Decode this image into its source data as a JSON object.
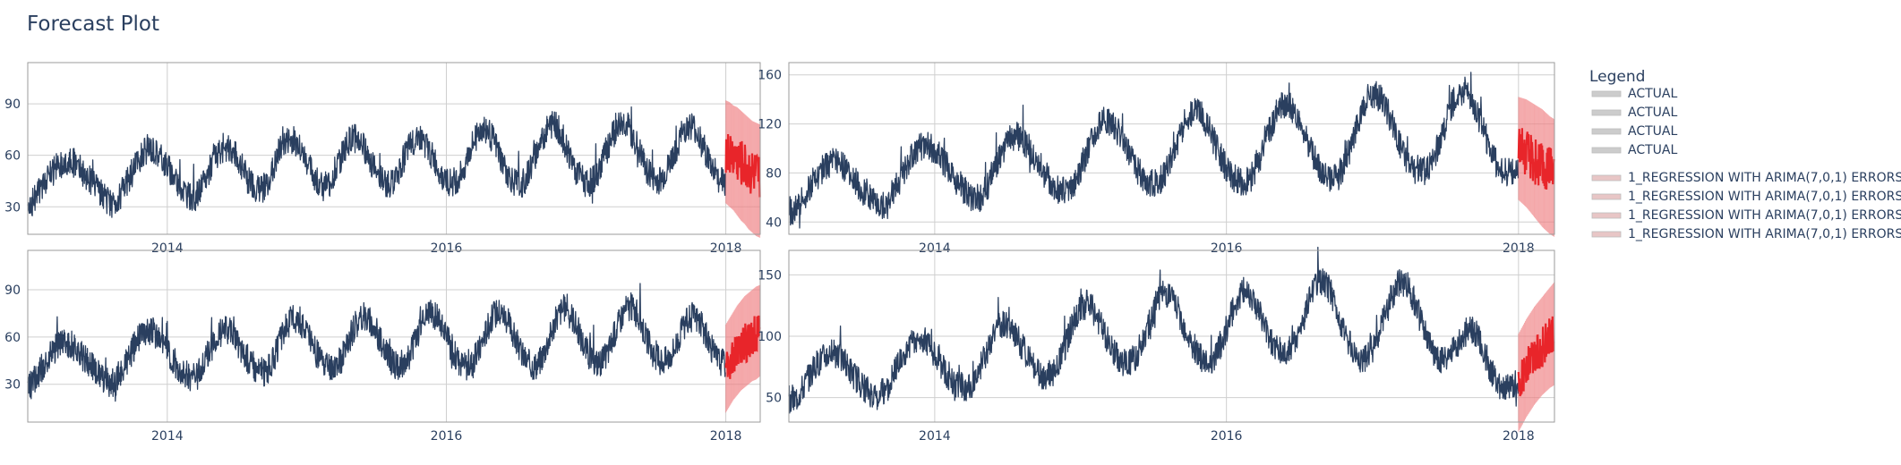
{
  "title": "Forecast Plot",
  "legend": {
    "title": "Legend",
    "items": [
      {
        "label": "ACTUAL",
        "color": "#cccccc"
      },
      {
        "label": "ACTUAL",
        "color": "#cccccc"
      },
      {
        "label": "ACTUAL",
        "color": "#cccccc"
      },
      {
        "label": "ACTUAL",
        "color": "#cccccc"
      },
      {
        "label": "1_REGRESSION WITH ARIMA(7,0,1) ERRORS",
        "color": "#e8c6c6"
      },
      {
        "label": "1_REGRESSION WITH ARIMA(7,0,1) ERRORS",
        "color": "#e8c6c6"
      },
      {
        "label": "1_REGRESSION WITH ARIMA(7,0,1) ERRORS",
        "color": "#e8c6c6"
      },
      {
        "label": "1_REGRESSION WITH ARIMA(7,0,1) ERRORS",
        "color": "#e8c6c6"
      }
    ]
  },
  "colors": {
    "actual": "#2a3f5f",
    "forecast": "#e8252a",
    "forecast_band": "#f2b8b8",
    "grid": "#cfcfcf",
    "axis": "#9b9b9b"
  },
  "chart_data": [
    {
      "type": "line",
      "xlim": [
        "2013-01-01",
        "2018-04-01"
      ],
      "xticks": [
        "2014",
        "2016",
        "2018"
      ],
      "ylim": [
        14,
        114
      ],
      "yticks": [
        30,
        60,
        90
      ],
      "actual": {
        "name": "ACTUAL",
        "start": "2013-01-01",
        "end": "2017-12-31",
        "weekly_points": [
          33,
          31,
          34,
          36,
          38,
          41,
          43,
          45,
          48,
          50,
          52,
          54,
          55,
          56,
          57,
          57,
          56,
          55,
          54,
          52,
          50,
          48,
          46,
          44,
          42,
          40,
          38,
          36,
          34,
          33,
          32,
          33,
          34,
          36,
          39,
          42,
          45,
          48,
          52,
          55,
          58,
          60,
          62,
          64,
          64,
          63,
          62,
          60,
          58,
          56,
          54,
          52,
          49,
          46,
          44,
          42,
          40,
          38,
          36,
          35,
          35,
          37,
          39,
          42,
          46,
          50,
          54,
          57,
          60,
          62,
          64,
          65,
          64,
          63,
          61,
          59,
          56,
          53,
          50,
          47,
          45,
          43,
          41,
          40,
          40,
          42,
          44,
          47,
          51,
          55,
          59,
          63,
          66,
          68,
          69,
          69,
          68,
          66,
          63,
          60,
          57,
          54,
          51,
          48,
          46,
          44,
          42,
          42,
          43,
          45,
          48,
          52,
          56,
          60,
          64,
          67,
          69,
          70,
          70,
          69,
          67,
          64,
          61,
          58,
          55,
          52,
          49,
          47,
          45,
          44,
          43,
          44,
          46,
          49,
          53,
          57,
          61,
          64,
          67,
          69,
          70,
          70,
          69,
          67,
          64,
          61,
          58,
          55,
          52,
          49,
          47,
          45,
          44,
          44,
          45,
          47,
          50,
          54,
          58,
          62,
          66,
          70,
          73,
          75,
          76,
          75,
          73,
          70,
          67,
          63,
          59,
          55,
          51,
          48,
          46,
          44,
          43,
          43,
          44,
          46,
          49,
          53,
          57,
          61,
          65,
          69,
          72,
          75,
          77,
          78,
          77,
          75,
          72,
          68,
          64,
          60,
          56,
          52,
          49,
          47,
          45,
          44,
          44,
          45,
          47,
          50,
          54,
          58,
          62,
          66,
          70,
          73,
          76,
          78,
          79,
          78,
          76,
          73,
          70,
          66,
          62,
          58,
          54,
          51,
          48,
          46,
          45,
          45,
          46,
          48,
          51,
          55,
          59,
          63,
          67,
          71,
          74,
          76,
          77,
          77,
          75,
          72,
          69,
          65,
          61,
          57,
          53,
          50,
          48,
          46,
          45,
          45
        ]
      },
      "forecast": {
        "name": "1_REGRESSION WITH ARIMA(7,0,1) ERRORS",
        "start": "2018-01-01",
        "end": "2018-03-31",
        "mean": [
          62,
          61,
          60,
          58,
          56,
          54,
          52,
          50,
          48,
          47
        ],
        "upper": [
          92,
          91,
          89,
          88,
          86,
          84,
          82,
          80,
          79,
          78
        ],
        "lower": [
          32,
          30,
          28,
          25,
          22,
          20,
          17,
          15,
          13,
          12
        ]
      }
    },
    {
      "type": "line",
      "xlim": [
        "2013-01-01",
        "2018-04-01"
      ],
      "xticks": [
        "2014",
        "2016",
        "2018"
      ],
      "ylim": [
        30,
        170
      ],
      "yticks": [
        40,
        80,
        120,
        160
      ],
      "actual": {
        "name": "ACTUAL",
        "start": "2013-01-01",
        "end": "2017-12-31",
        "weekly_points": [
          50,
          48,
          50,
          53,
          57,
          61,
          65,
          69,
          73,
          77,
          80,
          83,
          86,
          88,
          89,
          89,
          88,
          86,
          84,
          81,
          78,
          75,
          72,
          69,
          66,
          63,
          60,
          58,
          56,
          55,
          54,
          55,
          57,
          60,
          64,
          69,
          74,
          79,
          84,
          89,
          93,
          96,
          99,
          101,
          102,
          102,
          101,
          99,
          96,
          93,
          90,
          87,
          83,
          79,
          75,
          72,
          69,
          66,
          63,
          61,
          59,
          59,
          60,
          63,
          67,
          72,
          78,
          84,
          90,
          96,
          101,
          105,
          108,
          110,
          110,
          109,
          107,
          104,
          100,
          96,
          92,
          88,
          84,
          80,
          76,
          73,
          70,
          68,
          66,
          65,
          65,
          67,
          70,
          74,
          79,
          85,
          91,
          98,
          105,
          111,
          116,
          120,
          122,
          123,
          122,
          120,
          117,
          113,
          108,
          103,
          98,
          93,
          88,
          84,
          80,
          77,
          74,
          72,
          71,
          71,
          72,
          75,
          79,
          84,
          90,
          97,
          104,
          111,
          117,
          122,
          126,
          129,
          130,
          129,
          127,
          123,
          118,
          113,
          107,
          101,
          95,
          90,
          85,
          81,
          78,
          75,
          73,
          72,
          72,
          73,
          76,
          80,
          86,
          92,
          99,
          106,
          113,
          120,
          126,
          131,
          134,
          136,
          136,
          134,
          131,
          126,
          120,
          114,
          108,
          102,
          96,
          91,
          86,
          82,
          79,
          77,
          76,
          76,
          77,
          80,
          84,
          90,
          97,
          104,
          112,
          120,
          127,
          133,
          138,
          141,
          143,
          143,
          141,
          138,
          133,
          127,
          121,
          114,
          108,
          102,
          96,
          91,
          87,
          84,
          82,
          81,
          81,
          82,
          85,
          89,
          95,
          102,
          109,
          117,
          125,
          132,
          138,
          143,
          146,
          147,
          146,
          143,
          139,
          133,
          127,
          120,
          113,
          106,
          99,
          93,
          88,
          84,
          81,
          80,
          80,
          81,
          83,
          86
        ]
      },
      "forecast": {
        "name": "1_REGRESSION WITH ARIMA(7,0,1) ERRORS",
        "start": "2018-01-01",
        "end": "2018-03-31",
        "mean": [
          100,
          98,
          96,
          94,
          91,
          88,
          85,
          82,
          79,
          76
        ],
        "upper": [
          142,
          141,
          140,
          138,
          136,
          134,
          132,
          129,
          126,
          124
        ],
        "lower": [
          58,
          55,
          52,
          48,
          44,
          40,
          36,
          33,
          30,
          28
        ]
      }
    },
    {
      "type": "line",
      "xlim": [
        "2013-01-01",
        "2018-04-01"
      ],
      "xticks": [
        "2014",
        "2016",
        "2018"
      ],
      "ylim": [
        6,
        115
      ],
      "yticks": [
        30,
        60,
        90
      ],
      "actual": {
        "name": "ACTUAL",
        "start": "2013-01-01",
        "end": "2017-12-31",
        "weekly_points": [
          30,
          29,
          32,
          35,
          38,
          41,
          44,
          47,
          50,
          52,
          54,
          55,
          56,
          56,
          56,
          55,
          53,
          51,
          49,
          47,
          45,
          43,
          41,
          39,
          37,
          35,
          33,
          32,
          31,
          31,
          32,
          34,
          37,
          41,
          45,
          49,
          53,
          56,
          59,
          61,
          63,
          64,
          64,
          63,
          61,
          59,
          56,
          53,
          50,
          47,
          44,
          42,
          40,
          38,
          36,
          35,
          34,
          34,
          36,
          39,
          43,
          47,
          51,
          55,
          58,
          61,
          63,
          64,
          64,
          63,
          61,
          58,
          55,
          52,
          49,
          46,
          44,
          42,
          40,
          39,
          38,
          38,
          40,
          43,
          47,
          52,
          57,
          62,
          66,
          69,
          71,
          72,
          72,
          70,
          67,
          63,
          59,
          55,
          51,
          48,
          45,
          43,
          41,
          40,
          40,
          41,
          43,
          46,
          50,
          55,
          60,
          64,
          68,
          71,
          73,
          73,
          72,
          70,
          67,
          63,
          59,
          55,
          51,
          48,
          45,
          43,
          42,
          42,
          43,
          45,
          48,
          52,
          57,
          62,
          66,
          70,
          73,
          75,
          75,
          74,
          72,
          68,
          64,
          60,
          56,
          52,
          48,
          45,
          43,
          42,
          42,
          43,
          45,
          48,
          52,
          57,
          62,
          67,
          71,
          74,
          76,
          76,
          75,
          73,
          69,
          65,
          60,
          56,
          52,
          48,
          45,
          43,
          42,
          42,
          43,
          46,
          50,
          55,
          60,
          65,
          70,
          74,
          77,
          78,
          78,
          76,
          72,
          68,
          63,
          58,
          54,
          50,
          47,
          45,
          44,
          44,
          45,
          47,
          51,
          56,
          61,
          66,
          71,
          75,
          78,
          79,
          79,
          77,
          74,
          70,
          65,
          60,
          55,
          51,
          48,
          46,
          45,
          45,
          46,
          48,
          51,
          55,
          59,
          63,
          67,
          70,
          72,
          73,
          72,
          70,
          66,
          62,
          58,
          54,
          50,
          47,
          45,
          44,
          44
        ]
      },
      "forecast": {
        "name": "1_REGRESSION WITH ARIMA(7,0,1) ERRORS",
        "start": "2018-01-01",
        "end": "2018-03-31",
        "mean": [
          40,
          44,
          48,
          51,
          54,
          56,
          58,
          60,
          62,
          63
        ],
        "upper": [
          68,
          72,
          76,
          80,
          83,
          86,
          88,
          90,
          92,
          93
        ],
        "lower": [
          12,
          16,
          20,
          23,
          26,
          28,
          30,
          32,
          33,
          35
        ]
      }
    },
    {
      "type": "line",
      "xlim": [
        "2013-01-01",
        "2018-04-01"
      ],
      "xticks": [
        "2014",
        "2016",
        "2018"
      ],
      "ylim": [
        30,
        170
      ],
      "yticks": [
        50,
        100,
        150
      ],
      "actual": {
        "name": "ACTUAL",
        "start": "2013-01-01",
        "end": "2017-12-31",
        "weekly_points": [
          48,
          46,
          48,
          51,
          55,
          59,
          63,
          67,
          71,
          75,
          78,
          81,
          83,
          85,
          86,
          86,
          85,
          83,
          80,
          77,
          74,
          71,
          68,
          65,
          62,
          59,
          57,
          55,
          53,
          52,
          52,
          53,
          55,
          58,
          62,
          67,
          72,
          77,
          82,
          87,
          91,
          94,
          96,
          98,
          98,
          97,
          95,
          92,
          89,
          85,
          81,
          77,
          73,
          70,
          67,
          64,
          62,
          60,
          59,
          58,
          58,
          60,
          63,
          67,
          72,
          78,
          84,
          90,
          96,
          101,
          105,
          108,
          110,
          110,
          109,
          106,
          102,
          98,
          93,
          88,
          84,
          80,
          76,
          73,
          71,
          69,
          68,
          68,
          69,
          72,
          76,
          81,
          87,
          94,
          101,
          108,
          114,
          119,
          123,
          125,
          126,
          125,
          122,
          118,
          113,
          108,
          102,
          97,
          92,
          88,
          84,
          81,
          79,
          78,
          78,
          79,
          82,
          86,
          91,
          97,
          104,
          111,
          118,
          124,
          129,
          133,
          135,
          135,
          133,
          130,
          125,
          119,
          113,
          107,
          101,
          95,
          90,
          86,
          83,
          81,
          80,
          80,
          81,
          84,
          88,
          93,
          99,
          106,
          113,
          120,
          126,
          131,
          135,
          137,
          137,
          135,
          131,
          126,
          120,
          114,
          108,
          102,
          97,
          93,
          90,
          88,
          87,
          87,
          88,
          91,
          95,
          101,
          108,
          115,
          122,
          129,
          135,
          140,
          143,
          144,
          143,
          140,
          135,
          129,
          122,
          115,
          108,
          102,
          96,
          91,
          87,
          84,
          82,
          82,
          83,
          86,
          90,
          95,
          101,
          108,
          115,
          122,
          129,
          135,
          140,
          143,
          145,
          144,
          141,
          136,
          130,
          123,
          115,
          108,
          101,
          95,
          90,
          86,
          83,
          81,
          81,
          82,
          84,
          87,
          91,
          95,
          99,
          102,
          104,
          105,
          104,
          101,
          96,
          90,
          84,
          78,
          72,
          67,
          63,
          60,
          58,
          57,
          57,
          58,
          60,
          63
        ]
      },
      "forecast": {
        "name": "1_REGRESSION WITH ARIMA(7,0,1) ERRORS",
        "start": "2018-01-01",
        "end": "2018-03-31",
        "mean": [
          62,
          68,
          74,
          79,
          84,
          88,
          92,
          95,
          98,
          100
        ],
        "upper": [
          102,
          108,
          114,
          119,
          124,
          128,
          132,
          136,
          140,
          144
        ],
        "lower": [
          22,
          28,
          34,
          39,
          44,
          48,
          52,
          55,
          58,
          60
        ]
      }
    }
  ]
}
